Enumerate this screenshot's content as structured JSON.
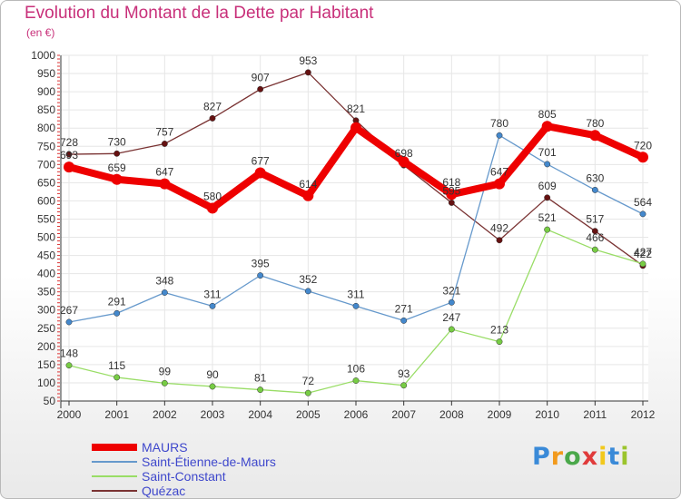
{
  "title": "Evolution du Montant de la Dette par Habitant",
  "subtitle": "(en €)",
  "logo": "Proxiti",
  "colors": {
    "title": "#c8307a",
    "legend_text": "#3f48cc",
    "grid": "#e6e6e6",
    "axis": "#333333"
  },
  "chart_data": {
    "type": "line",
    "title": "Evolution du Montant de la Dette par Habitant",
    "subtitle": "(en €)",
    "xlabel": "",
    "ylabel": "",
    "ylim": [
      50,
      1000
    ],
    "yticks": [
      50,
      100,
      150,
      200,
      250,
      300,
      350,
      400,
      450,
      500,
      550,
      600,
      650,
      700,
      750,
      800,
      850,
      900,
      950,
      1000
    ],
    "categories": [
      "2000",
      "2001",
      "2002",
      "2003",
      "2004",
      "2005",
      "2006",
      "2007",
      "2008",
      "2009",
      "2010",
      "2011",
      "2012"
    ],
    "grid": true,
    "legend_position": "bottom-left",
    "series": [
      {
        "name": "MAURS",
        "values": [
          693,
          659,
          647,
          580,
          677,
          614,
          801,
          708,
          618,
          647,
          805,
          780,
          720
        ],
        "color": "#ee0000",
        "point_color": "#ee0000"
      },
      {
        "name": "Saint-Étienne-de-Maurs",
        "values": [
          267,
          291,
          348,
          311,
          395,
          352,
          311,
          271,
          321,
          780,
          701,
          630,
          564
        ],
        "color": "#6699cc",
        "point_color": "#4488cc"
      },
      {
        "name": "Saint-Constant",
        "values": [
          148,
          115,
          99,
          90,
          81,
          72,
          106,
          93,
          247,
          213,
          521,
          466,
          427
        ],
        "color": "#99dd66",
        "point_color": "#77cc44"
      },
      {
        "name": "Quézac",
        "values": [
          728,
          730,
          757,
          827,
          907,
          953,
          821,
          698,
          595,
          492,
          609,
          517,
          422
        ],
        "color": "#7a3333",
        "point_color": "#661111"
      }
    ],
    "data_labels": [
      [
        "693",
        "659",
        "647",
        "580",
        "677",
        "614",
        "",
        "",
        "618",
        "647",
        "805",
        "780",
        "720"
      ],
      [
        "267",
        "291",
        "348",
        "311",
        "395",
        "352",
        "311",
        "271",
        "321",
        "780",
        "701",
        "630",
        "564"
      ],
      [
        "148",
        "115",
        "99",
        "90",
        "81",
        "72",
        "106",
        "93",
        "247",
        "213",
        "521",
        "466",
        "427"
      ],
      [
        "728",
        "730",
        "757",
        "827",
        "907",
        "953",
        "821",
        "698",
        "595",
        "492",
        "609",
        "517",
        "422"
      ]
    ]
  }
}
